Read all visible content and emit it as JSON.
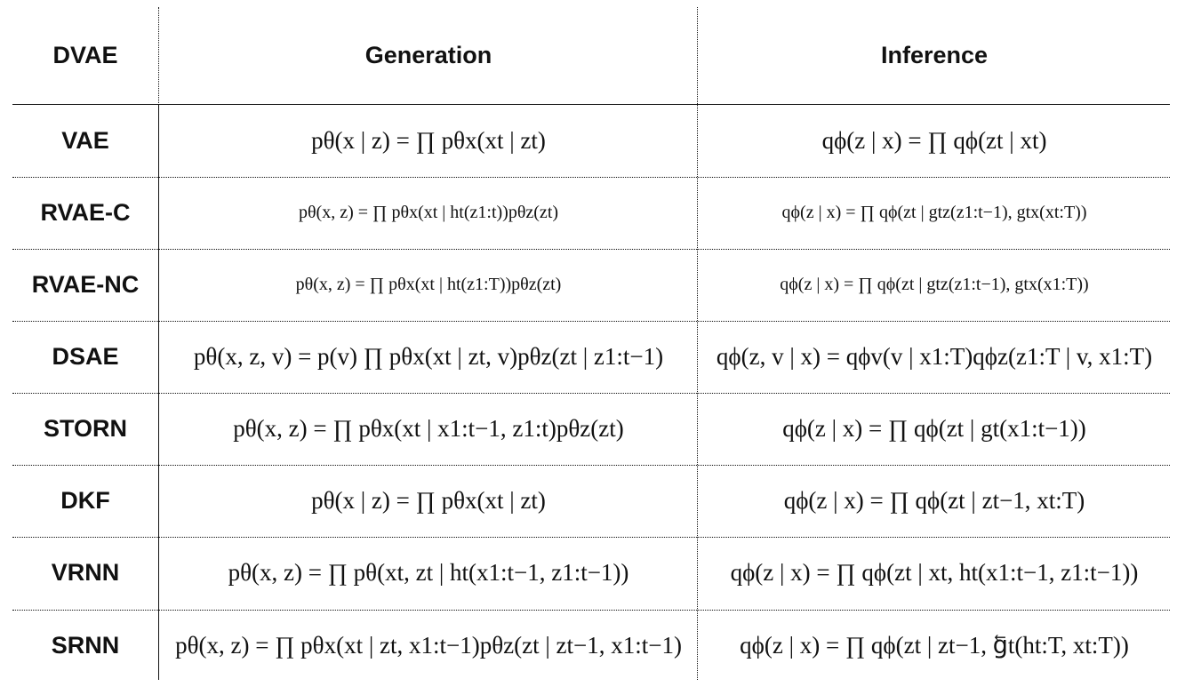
{
  "headers": {
    "model": "DVAE",
    "generation": "Generation",
    "inference": "Inference"
  },
  "rows": [
    {
      "model": "VAE",
      "generation": "pθ(x | z) = ∏ pθx(xt | zt)",
      "inference": "qϕ(z | x) = ∏ qϕ(zt | xt)"
    },
    {
      "model": "RVAE-C",
      "generation": "pθ(x, z) = ∏ pθx(xt | ht(z1:t))pθz(zt)",
      "inference": "qϕ(z | x) = ∏ qϕ(zt | gtz(z1:t−1), gtx(xt:T))"
    },
    {
      "model": "RVAE-NC",
      "generation": "pθ(x, z) = ∏ pθx(xt | ht(z1:T))pθz(zt)",
      "inference": "qϕ(z | x) = ∏ qϕ(zt | gtz(z1:t−1), gtx(x1:T))"
    },
    {
      "model": "DSAE",
      "generation": "pθ(x, z, v) = p(v) ∏ pθx(xt | zt, v)pθz(zt | z1:t−1)",
      "inference": "qϕ(z, v | x) = qϕv(v | x1:T)qϕz(z1:T | v, x1:T)"
    },
    {
      "model": "STORN",
      "generation": "pθ(x, z) = ∏ pθx(xt | x1:t−1, z1:t)pθz(zt)",
      "inference": "qϕ(z | x) = ∏ qϕ(zt | gt(x1:t−1))"
    },
    {
      "model": "DKF",
      "generation": "pθ(x | z) = ∏ pθx(xt | zt)",
      "inference": "qϕ(z | x) = ∏ qϕ(zt | zt−1, xt:T)"
    },
    {
      "model": "VRNN",
      "generation": "pθ(x, z) = ∏ pθ(xt, zt | ht(x1:t−1, z1:t−1))",
      "inference": "qϕ(z | x) = ∏ qϕ(zt | xt, ht(x1:t−1, z1:t−1))"
    },
    {
      "model": "SRNN",
      "generation": "pθ(x, z) = ∏ pθx(xt | zt, x1:t−1)pθz(zt | zt−1, x1:t−1)",
      "inference": "qϕ(z | x) = ∏ qϕ(zt | zt−1, g⃖t(ht:T, xt:T))"
    }
  ]
}
